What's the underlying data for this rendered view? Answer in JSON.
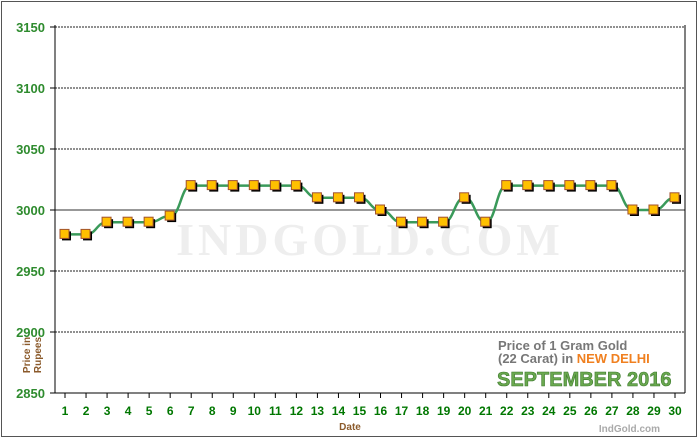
{
  "chart_data": {
    "type": "line",
    "title": "Price of 1 Gram Gold (22 Carat) in NEW DELHI SEPTEMBER 2016",
    "legend": {
      "line1": "Price of 1 Gram Gold",
      "line2_prefix": "(22 Carat) in ",
      "line2_city": "NEW DELHI",
      "line3": "SEPTEMBER 2016"
    },
    "watermark": "INDGOLD.COM",
    "credit": "IndGold.com",
    "xlabel": "Date",
    "ylabel": "Price in Rupees",
    "ylim": [
      2850,
      3150
    ],
    "yticks": [
      2850,
      2900,
      2950,
      3000,
      3050,
      3100,
      3150
    ],
    "x": [
      1,
      2,
      3,
      4,
      5,
      6,
      7,
      8,
      9,
      10,
      11,
      12,
      13,
      14,
      15,
      16,
      17,
      18,
      19,
      20,
      21,
      22,
      23,
      24,
      25,
      26,
      27,
      28,
      29,
      30
    ],
    "values": [
      2980,
      2980,
      2990,
      2990,
      2990,
      2995,
      3020,
      3020,
      3020,
      3020,
      3020,
      3020,
      3010,
      3010,
      3010,
      3000,
      2990,
      2990,
      2990,
      3010,
      2990,
      3020,
      3020,
      3020,
      3020,
      3020,
      3020,
      3000,
      3000,
      3010
    ],
    "grid": true,
    "colors": {
      "line": "#3a9a5a",
      "marker_fill": "#ffc000",
      "marker_edge": "#a0522d",
      "tick_text": "#007700"
    }
  }
}
